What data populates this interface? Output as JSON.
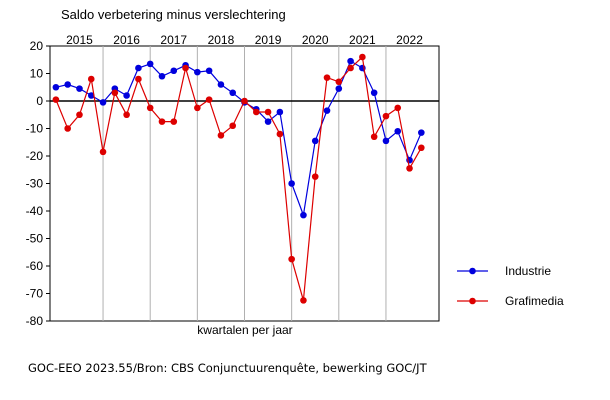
{
  "chart_data": {
    "type": "line",
    "title": "Saldo verbetering minus verslechtering",
    "xlabel": "kwartalen per jaar",
    "ylabel": "",
    "ylim": [
      -80,
      20
    ],
    "yticks": [
      20,
      10,
      0,
      -10,
      -20,
      -30,
      -40,
      -50,
      -60,
      -70,
      -80
    ],
    "grid": "vertical",
    "legend_position": "right",
    "year_labels": [
      "2015",
      "2016",
      "2017",
      "2018",
      "2019",
      "2020",
      "2021",
      "2022"
    ],
    "x_quarters": 33,
    "series": [
      {
        "name": "Industrie",
        "color": "#0000dd",
        "values": [
          5,
          6,
          4.5,
          2,
          -0.5,
          4.5,
          2,
          12,
          13.5,
          9,
          11,
          13,
          10.5,
          11,
          6,
          3,
          -0.5,
          -3,
          -7.5,
          -4,
          -30,
          -41.5,
          -14.5,
          -3.5,
          4.5,
          14.5,
          12,
          3,
          -14.5,
          -11,
          -21.5,
          -11.5
        ]
      },
      {
        "name": "Grafimedia",
        "color": "#dd0000",
        "values": [
          0.5,
          -10,
          -5,
          8,
          -18.5,
          3,
          -5,
          8,
          -2.5,
          -7.5,
          -7.5,
          12,
          -2.5,
          0.5,
          -12.5,
          -9,
          0,
          -4,
          -4,
          -12,
          -57.5,
          -72.5,
          -27.5,
          8.5,
          7,
          12,
          16,
          -13,
          -5.5,
          -2.5,
          -24.5,
          -17
        ]
      }
    ]
  },
  "footer": {
    "source": "GOC-EEO 2023.55/Bron: CBS Conjunctuurenquête, bewerking GOC/JT"
  }
}
